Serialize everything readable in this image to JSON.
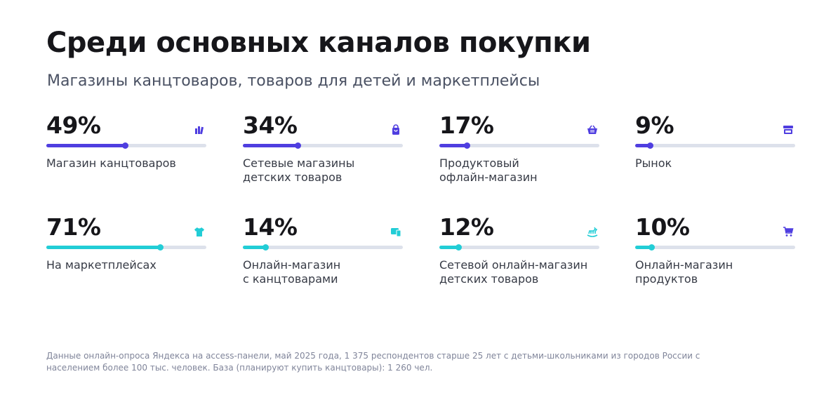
{
  "title": "Среди основных каналов покупки",
  "subtitle": "Магазины канцтоваров, товаров для детей и маркетплейсы",
  "colors": {
    "offline": "#4f3ee0",
    "online": "#22cdd6",
    "track": "#dde1eb"
  },
  "chart_data": {
    "type": "bar",
    "unit": "%",
    "categories": [
      "Магазин канцтоваров",
      "Сетевые магазины детских товаров",
      "Продуктовый офлайн-магазин",
      "Рынок",
      "На маркетплейсах",
      "Онлайн-магазин с канцтоварами",
      "Сетевой онлайн-магазин детских товаров",
      "Онлайн-магазин продуктов"
    ],
    "values": [
      49,
      34,
      17,
      9,
      71,
      14,
      12,
      10
    ],
    "ylim": [
      0,
      100
    ]
  },
  "cards": [
    {
      "pct": "49%",
      "value": 49,
      "label": "Магазин канцтоваров",
      "icon": "books-icon",
      "row": "offline"
    },
    {
      "pct": "34%",
      "value": 34,
      "label": "Сетевые магазины\nдетских товаров",
      "icon": "shopping-bag-icon",
      "row": "offline"
    },
    {
      "pct": "17%",
      "value": 17,
      "label": "Продуктовый\nофлайн-магазин",
      "icon": "basket-icon",
      "row": "offline"
    },
    {
      "pct": "9%",
      "value": 9,
      "label": "Рынок",
      "icon": "market-stall-icon",
      "row": "offline"
    },
    {
      "pct": "71%",
      "value": 71,
      "label": "На маркетплейсах",
      "icon": "tshirt-icon",
      "row": "online"
    },
    {
      "pct": "14%",
      "value": 14,
      "label": "Онлайн-магазин\nс канцтоварами",
      "icon": "devices-icon",
      "row": "online"
    },
    {
      "pct": "12%",
      "value": 12,
      "label": "Сетевой онлайн-магазин\nдетских товаров",
      "icon": "rocking-horse-icon",
      "row": "online"
    },
    {
      "pct": "10%",
      "value": 10,
      "label": "Онлайн-магазин\nпродуктов",
      "icon": "cart-icon",
      "row": "online"
    }
  ],
  "footnote": "Данные онлайн-опроса Яндекса на access-панели, май 2025 года, 1 375 респондентов старше 25 лет с детьми-школьниками из городов России с населением более 100 тыс. человек. База (планируют купить канцтовары): 1 260 чел."
}
